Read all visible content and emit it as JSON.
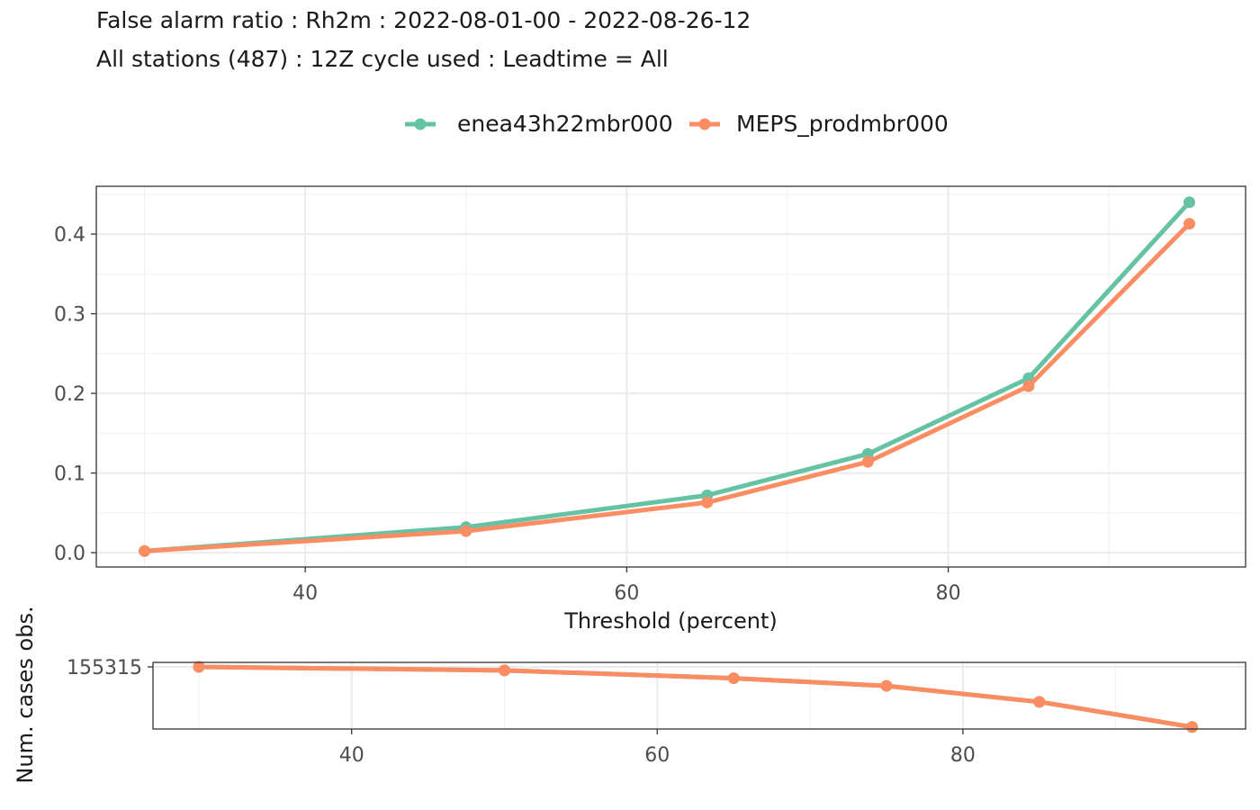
{
  "title": {
    "line1": "False alarm ratio : Rh2m : 2022-08-01-00 - 2022-08-26-12",
    "line2": "All stations (487) : 12Z cycle used : Leadtime = All"
  },
  "legend": [
    {
      "name": "enea43h22mbr000",
      "color": "#66C2A5"
    },
    {
      "name": "MEPS_prodmbr000",
      "color": "#FC8D62"
    }
  ],
  "chart_data": [
    {
      "type": "line",
      "title": "False alarm ratio : Rh2m : 2022-08-01-00 - 2022-08-26-12",
      "xlabel": "Threshold (percent)",
      "ylabel": "",
      "xlim": [
        27,
        98.5
      ],
      "ylim": [
        -0.018,
        0.46
      ],
      "xticks": [
        40,
        60,
        80
      ],
      "yticks": [
        0.0,
        0.1,
        0.2,
        0.3,
        0.4
      ],
      "ytick_labels": [
        "0.0",
        "0.1",
        "0.2",
        "0.3",
        "0.4"
      ],
      "grid": true,
      "legend_position": "top",
      "series": [
        {
          "name": "enea43h22mbr000",
          "color": "#66C2A5",
          "x": [
            30,
            50,
            65,
            75,
            85,
            95
          ],
          "y": [
            0.002,
            0.032,
            0.072,
            0.124,
            0.219,
            0.44
          ]
        },
        {
          "name": "MEPS_prodmbr000",
          "color": "#FC8D62",
          "x": [
            30,
            50,
            65,
            75,
            85,
            95
          ],
          "y": [
            0.002,
            0.027,
            0.063,
            0.114,
            0.209,
            0.413
          ]
        }
      ]
    },
    {
      "type": "line",
      "title": "",
      "xlabel": "",
      "ylabel": "Num. cases obs.",
      "xlim": [
        27,
        98.5
      ],
      "ylim": [
        118000,
        158000
      ],
      "xticks": [
        40,
        60,
        80
      ],
      "yticks": [
        155315
      ],
      "ytick_labels": [
        "155315"
      ],
      "grid": true,
      "series": [
        {
          "name": "enea43h22mbr000",
          "color": "#66C2A5",
          "x": [
            30,
            50,
            65,
            75,
            85,
            95
          ],
          "y": [
            155315,
            153200,
            148500,
            143900,
            134300,
            119200
          ]
        },
        {
          "name": "MEPS_prodmbr000",
          "color": "#FC8D62",
          "x": [
            30,
            50,
            65,
            75,
            85,
            95
          ],
          "y": [
            155315,
            153200,
            148500,
            143900,
            134300,
            119200
          ]
        }
      ]
    }
  ]
}
